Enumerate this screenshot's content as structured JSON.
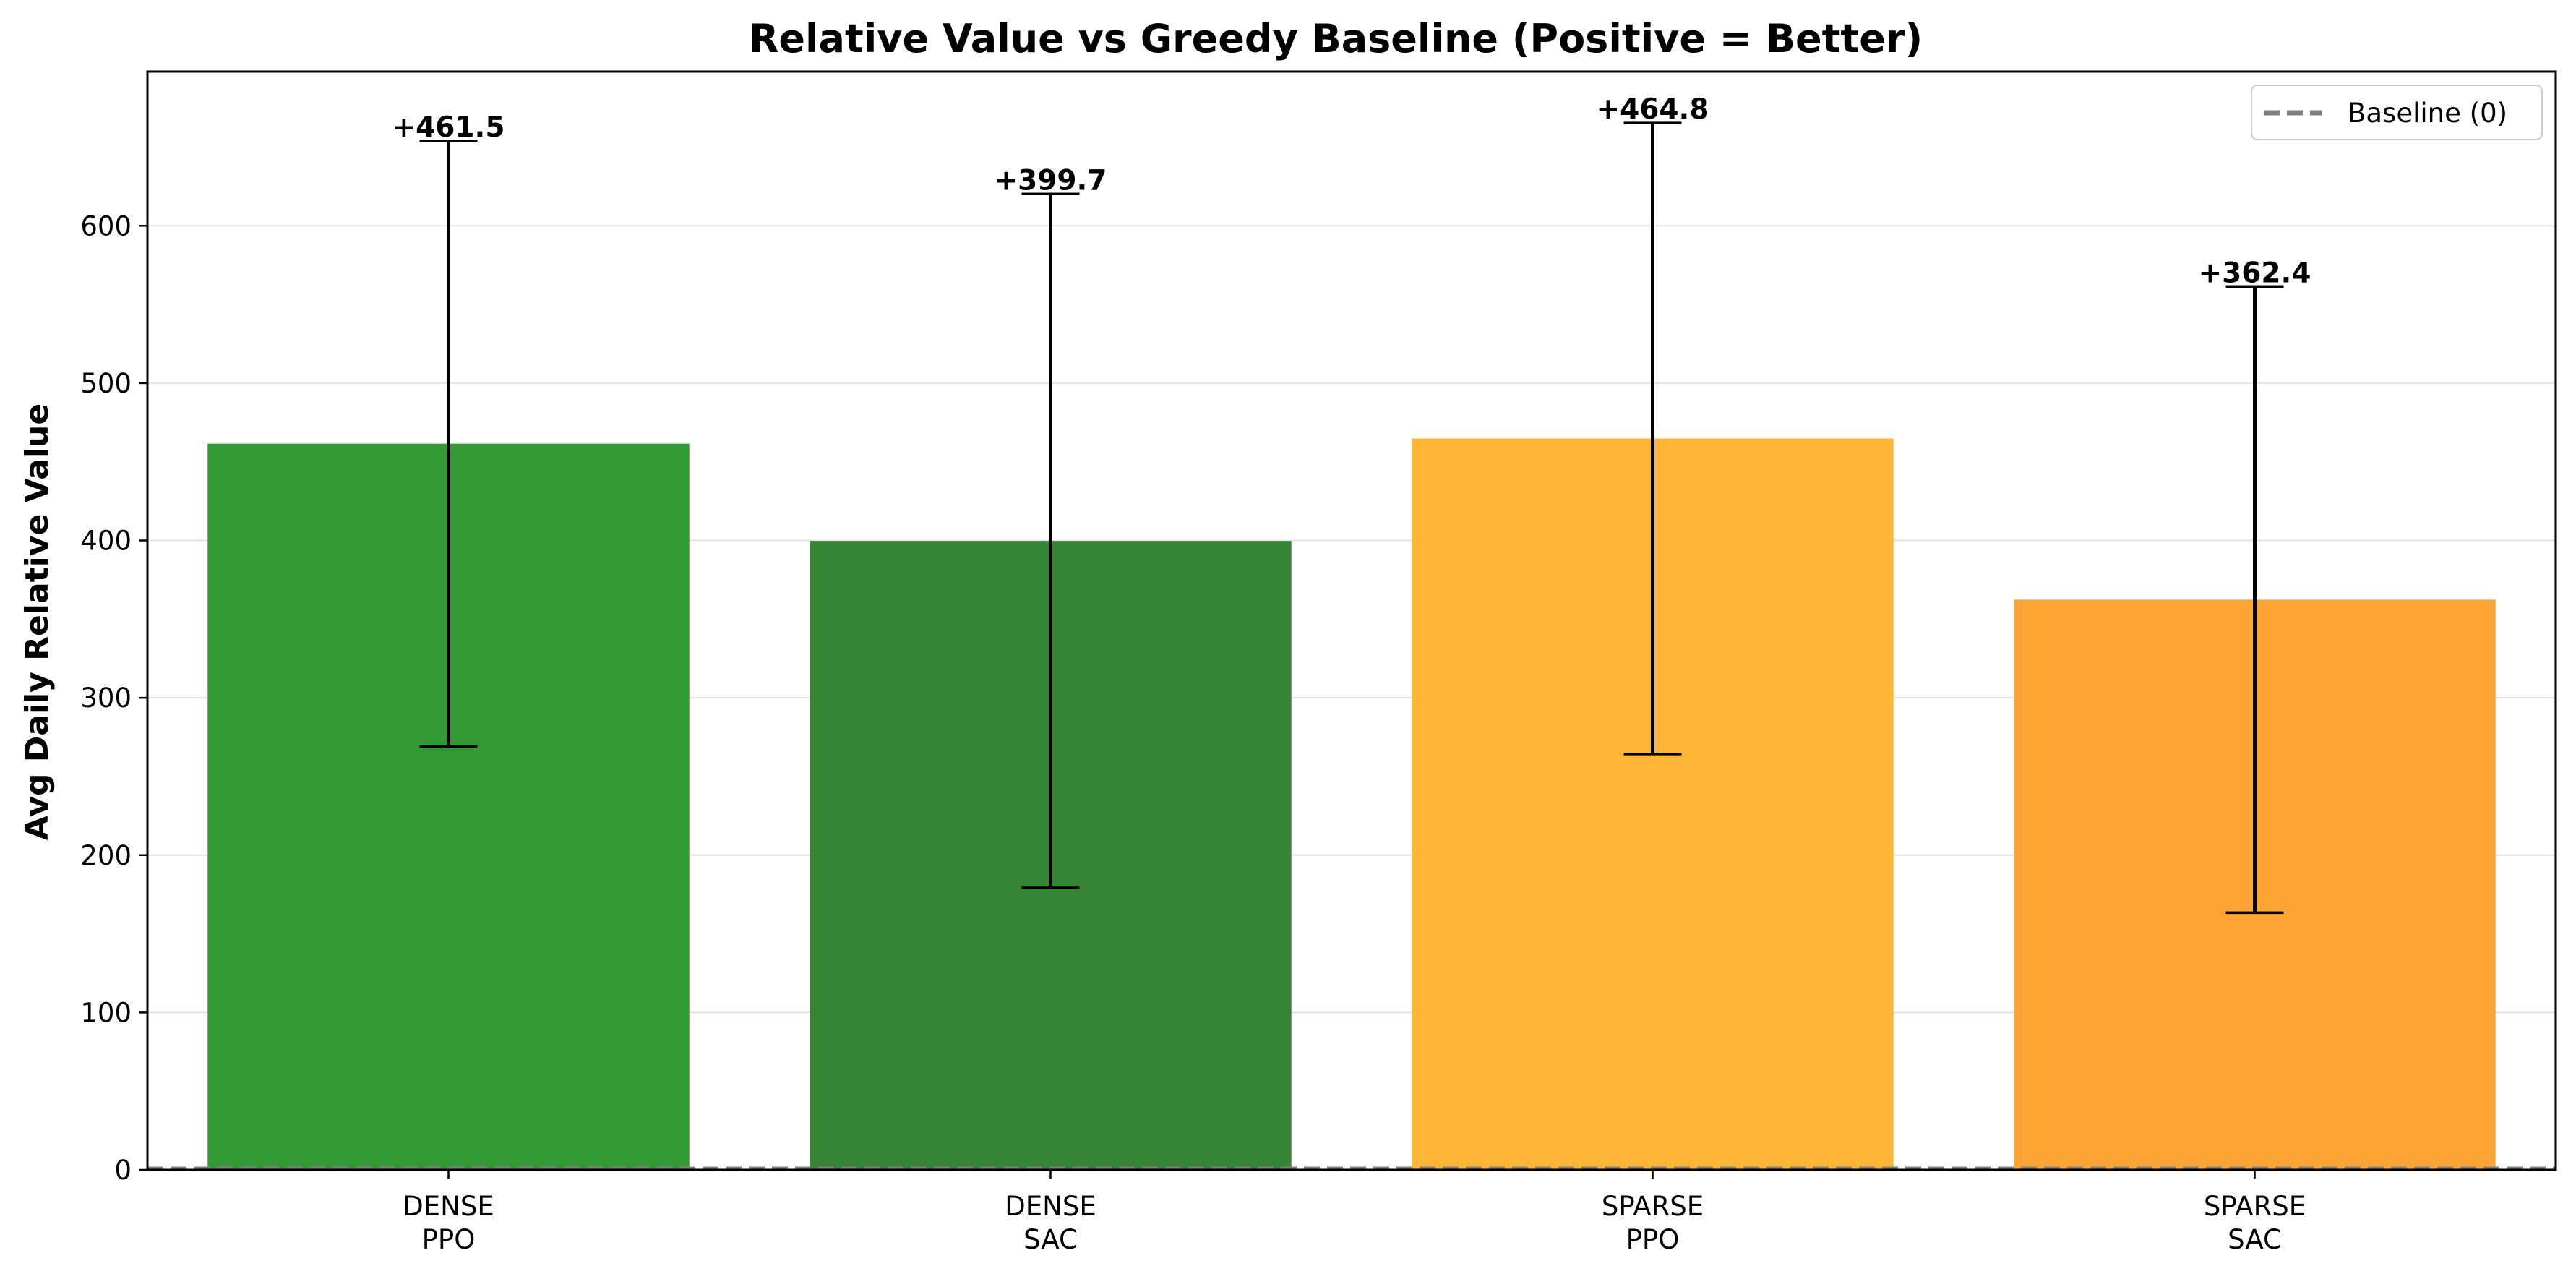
{
  "chart_data": {
    "type": "bar",
    "title": "Relative Value vs Greedy Baseline (Positive = Better)",
    "xlabel": "",
    "ylabel": "Avg Daily Relative Value",
    "ylim": [
      0,
      698
    ],
    "yticks": [
      0,
      100,
      200,
      300,
      400,
      500,
      600
    ],
    "grid": "y",
    "categories": [
      [
        "DENSE",
        "PPO"
      ],
      [
        "DENSE",
        "SAC"
      ],
      [
        "SPARSE",
        "PPO"
      ],
      [
        "SPARSE",
        "SAC"
      ]
    ],
    "values": [
      461.5,
      399.7,
      464.8,
      362.4
    ],
    "errors": [
      192.5,
      220.5,
      200.5,
      199.0
    ],
    "data_labels": [
      "+461.5",
      "+399.7",
      "+464.8",
      "+362.4"
    ],
    "colors": [
      "#339933",
      "#358535",
      "#ffb535",
      "#ffa535"
    ],
    "baseline": {
      "value": 0,
      "label": "Baseline (0)",
      "color": "#808080",
      "style": "dashed"
    },
    "legend": {
      "position": "top-right",
      "entries": [
        "Baseline (0)"
      ]
    }
  }
}
